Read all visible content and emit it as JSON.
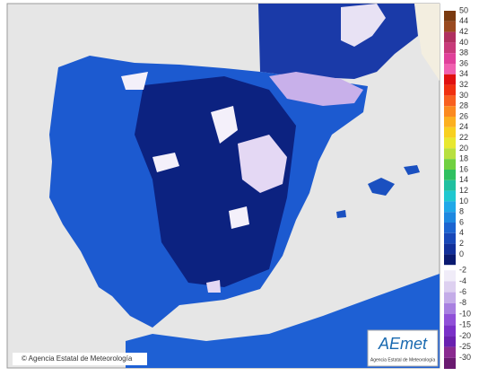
{
  "credit": "© Agencia Estatal de Meteorología",
  "logo": {
    "name": "AEmet",
    "subtitle": "Agencia Estatal de Meteorología"
  },
  "legend": {
    "items": [
      {
        "label": 50,
        "color": "#7a3a10"
      },
      {
        "label": 44,
        "color": "#9a4a20"
      },
      {
        "label": 42,
        "color": "#b03060"
      },
      {
        "label": 40,
        "color": "#c83a7a"
      },
      {
        "label": 38,
        "color": "#e0409a"
      },
      {
        "label": 36,
        "color": "#f060b0"
      },
      {
        "label": 34,
        "color": "#e01010"
      },
      {
        "label": 32,
        "color": "#f03010"
      },
      {
        "label": 30,
        "color": "#f86020"
      },
      {
        "label": 28,
        "color": "#fb8a20"
      },
      {
        "label": 26,
        "color": "#fcb020"
      },
      {
        "label": 24,
        "color": "#f8d020"
      },
      {
        "label": 22,
        "color": "#e8e830"
      },
      {
        "label": 20,
        "color": "#b8e040"
      },
      {
        "label": 18,
        "color": "#70d040"
      },
      {
        "label": 16,
        "color": "#30c060"
      },
      {
        "label": 14,
        "color": "#20c0a0"
      },
      {
        "label": 12,
        "color": "#20c8d0"
      },
      {
        "label": 10,
        "color": "#20a8e8"
      },
      {
        "label": 8,
        "color": "#1e88e0"
      },
      {
        "label": 6,
        "color": "#1c64d0"
      },
      {
        "label": 4,
        "color": "#1848b8"
      },
      {
        "label": 2,
        "color": "#12309a"
      },
      {
        "label": 0,
        "color": "#0a1a70"
      },
      {
        "label": -2,
        "color": "#f0ecf8"
      },
      {
        "label": -4,
        "color": "#ddd0f0"
      },
      {
        "label": -6,
        "color": "#c4ace8"
      },
      {
        "label": -8,
        "color": "#a880e0"
      },
      {
        "label": -10,
        "color": "#9050d8"
      },
      {
        "label": -15,
        "color": "#7a30c8"
      },
      {
        "label": -20,
        "color": "#6a20b0"
      },
      {
        "label": -25,
        "color": "#8a2a90"
      },
      {
        "label": -30,
        "color": "#6a1a70"
      }
    ]
  }
}
